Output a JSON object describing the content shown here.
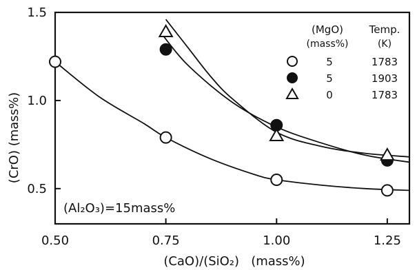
{
  "chart_data": {
    "type": "scatter",
    "xlabel": "(CaO)/(SiO₂)   (mass%)",
    "ylabel": "(CrO)  (mass%)",
    "xlim": [
      0.5,
      1.3
    ],
    "ylim": [
      0.3,
      1.5
    ],
    "x_ticks": [
      0.5,
      0.75,
      1.0,
      1.25
    ],
    "x_tick_labels": [
      "0.50",
      "0.75",
      "1.00",
      "1.25"
    ],
    "y_ticks": [
      0.5,
      1.0,
      1.5
    ],
    "y_tick_labels": [
      "0.5",
      "1.0",
      "1.5"
    ],
    "annotation": "(Al₂O₃)=15mass%",
    "legend": {
      "position": "top-right",
      "header_mgo": [
        "(MgO)",
        "(mass%)"
      ],
      "header_temp": [
        "Temp.",
        "(K)"
      ]
    },
    "series": [
      {
        "marker": "open-circle",
        "mgo": "5",
        "temp": "1783",
        "x": [
          0.5,
          0.75,
          1.0,
          1.25
        ],
        "y": [
          1.22,
          0.79,
          0.55,
          0.49
        ],
        "curve": [
          [
            0.5,
            1.22
          ],
          [
            0.6,
            1.02
          ],
          [
            0.7,
            0.87
          ],
          [
            0.75,
            0.79
          ],
          [
            0.85,
            0.67
          ],
          [
            0.95,
            0.58
          ],
          [
            1.0,
            0.55
          ],
          [
            1.1,
            0.52
          ],
          [
            1.2,
            0.5
          ],
          [
            1.3,
            0.49
          ]
        ]
      },
      {
        "marker": "filled-circle",
        "mgo": "5",
        "temp": "1903",
        "x": [
          0.75,
          1.0,
          1.25
        ],
        "y": [
          1.29,
          0.86,
          0.66
        ],
        "curve": [
          [
            0.74,
            1.38
          ],
          [
            0.8,
            1.2
          ],
          [
            0.9,
            0.99
          ],
          [
            1.0,
            0.85
          ],
          [
            1.1,
            0.76
          ],
          [
            1.2,
            0.69
          ],
          [
            1.3,
            0.65
          ]
        ]
      },
      {
        "marker": "open-triangle",
        "mgo": "0",
        "temp": "1783",
        "x": [
          0.75,
          1.0,
          1.25
        ],
        "y": [
          1.39,
          0.8,
          0.69
        ],
        "curve": [
          [
            0.75,
            1.46
          ],
          [
            0.8,
            1.3
          ],
          [
            0.85,
            1.14
          ],
          [
            0.9,
            1.01
          ],
          [
            1.0,
            0.82
          ],
          [
            1.1,
            0.74
          ],
          [
            1.2,
            0.7
          ],
          [
            1.3,
            0.68
          ]
        ]
      }
    ]
  }
}
